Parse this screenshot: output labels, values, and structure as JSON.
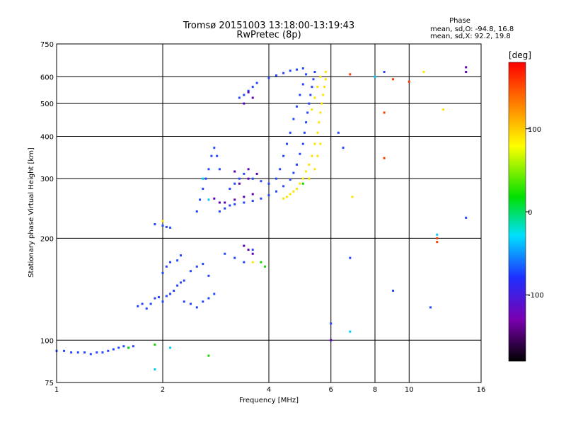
{
  "chart_data": {
    "type": "scatter",
    "title": "Tromsø 20151003 13:18:00-13:19:43",
    "subtitle": "RwPretec (8p)",
    "xlabel": "Frequency [MHz]",
    "ylabel": "Stationary phase Virtual Height [km]",
    "x_scale": "log",
    "y_scale": "log",
    "xlim": [
      1,
      16
    ],
    "ylim": [
      75,
      750
    ],
    "x_ticks": [
      1,
      2,
      4,
      6,
      8,
      10,
      16
    ],
    "y_ticks": [
      75,
      100,
      200,
      300,
      400,
      500,
      600,
      750
    ],
    "grid": true,
    "stats": {
      "heading": "Phase",
      "o_line": "mean, sd,O: -94.8, 16.8",
      "x_line": "mean, sd,X:  92.2, 19.8"
    },
    "colorbar": {
      "label": "[deg]",
      "range": [
        -180,
        180
      ],
      "ticks": [
        100,
        0,
        -100
      ]
    },
    "series": [
      {
        "name": "",
        "polarization": "O",
        "phase_deg": -95,
        "color": "#2545ff",
        "points": [
          [
            1.0,
            93
          ],
          [
            1.05,
            93
          ],
          [
            1.1,
            92
          ],
          [
            1.15,
            92
          ],
          [
            1.2,
            92
          ],
          [
            1.25,
            91
          ],
          [
            1.3,
            92
          ],
          [
            1.35,
            92
          ],
          [
            1.4,
            93
          ],
          [
            1.45,
            94
          ],
          [
            1.5,
            95
          ],
          [
            1.55,
            96
          ],
          [
            1.6,
            95
          ],
          [
            1.65,
            96
          ],
          [
            1.7,
            126
          ],
          [
            1.75,
            128
          ],
          [
            1.8,
            124
          ],
          [
            1.85,
            128
          ],
          [
            1.9,
            133
          ],
          [
            1.95,
            134
          ],
          [
            2.0,
            130
          ],
          [
            2.05,
            135
          ],
          [
            2.1,
            137
          ],
          [
            2.15,
            140
          ],
          [
            2.2,
            145
          ],
          [
            2.25,
            148
          ],
          [
            2.3,
            150
          ],
          [
            2.0,
            158
          ],
          [
            2.05,
            165
          ],
          [
            2.1,
            170
          ],
          [
            2.2,
            172
          ],
          [
            2.25,
            178
          ],
          [
            2.3,
            130
          ],
          [
            2.4,
            128
          ],
          [
            2.5,
            125
          ],
          [
            2.6,
            130
          ],
          [
            2.7,
            133
          ],
          [
            2.8,
            137
          ],
          [
            2.4,
            160
          ],
          [
            2.5,
            165
          ],
          [
            2.6,
            168
          ],
          [
            2.7,
            155
          ],
          [
            3.0,
            180
          ],
          [
            3.2,
            175
          ],
          [
            3.4,
            170
          ],
          [
            3.6,
            185
          ],
          [
            1.9,
            220
          ],
          [
            2.0,
            218
          ],
          [
            2.05,
            216
          ],
          [
            2.1,
            215
          ],
          [
            2.5,
            240
          ],
          [
            2.55,
            260
          ],
          [
            2.6,
            280
          ],
          [
            2.65,
            300
          ],
          [
            2.7,
            320
          ],
          [
            2.75,
            350
          ],
          [
            2.8,
            370
          ],
          [
            2.85,
            350
          ],
          [
            2.9,
            320
          ],
          [
            2.9,
            240
          ],
          [
            3.0,
            245
          ],
          [
            3.1,
            250
          ],
          [
            3.2,
            252
          ],
          [
            3.4,
            255
          ],
          [
            3.6,
            258
          ],
          [
            3.8,
            262
          ],
          [
            4.0,
            268
          ],
          [
            4.2,
            275
          ],
          [
            4.4,
            285
          ],
          [
            4.6,
            298
          ],
          [
            4.7,
            312
          ],
          [
            4.8,
            330
          ],
          [
            4.9,
            355
          ],
          [
            5.0,
            380
          ],
          [
            5.05,
            410
          ],
          [
            5.1,
            440
          ],
          [
            5.15,
            470
          ],
          [
            5.2,
            500
          ],
          [
            5.25,
            530
          ],
          [
            5.3,
            560
          ],
          [
            5.35,
            590
          ],
          [
            5.4,
            620
          ],
          [
            3.1,
            280
          ],
          [
            3.2,
            290
          ],
          [
            3.3,
            300
          ],
          [
            3.4,
            310
          ],
          [
            3.6,
            300
          ],
          [
            3.8,
            295
          ],
          [
            4.0,
            290
          ],
          [
            4.2,
            300
          ],
          [
            4.3,
            320
          ],
          [
            4.4,
            350
          ],
          [
            4.5,
            380
          ],
          [
            4.6,
            410
          ],
          [
            4.7,
            450
          ],
          [
            4.8,
            490
          ],
          [
            4.9,
            530
          ],
          [
            5.0,
            570
          ],
          [
            5.1,
            610
          ],
          [
            4.0,
            595
          ],
          [
            4.2,
            605
          ],
          [
            4.4,
            615
          ],
          [
            4.6,
            625
          ],
          [
            4.8,
            630
          ],
          [
            5.0,
            635
          ],
          [
            3.3,
            520
          ],
          [
            3.4,
            530
          ],
          [
            3.5,
            545
          ],
          [
            3.6,
            560
          ],
          [
            3.7,
            575
          ],
          [
            6.0,
            112
          ],
          [
            6.3,
            410
          ],
          [
            6.5,
            370
          ],
          [
            6.8,
            175
          ],
          [
            8.5,
            620
          ],
          [
            9.0,
            140
          ],
          [
            11.5,
            125
          ],
          [
            14.5,
            230
          ]
        ]
      },
      {
        "name": "",
        "polarization": "O-low",
        "phase_deg": -130,
        "color": "#5a00b5",
        "points": [
          [
            3.0,
            255
          ],
          [
            3.2,
            260
          ],
          [
            3.4,
            265
          ],
          [
            3.6,
            270
          ],
          [
            3.3,
            290
          ],
          [
            3.5,
            300
          ],
          [
            3.7,
            310
          ],
          [
            3.5,
            320
          ],
          [
            3.2,
            315
          ],
          [
            2.9,
            255
          ],
          [
            2.8,
            262
          ],
          [
            3.4,
            190
          ],
          [
            3.5,
            185
          ],
          [
            3.6,
            180
          ],
          [
            3.4,
            500
          ],
          [
            3.6,
            520
          ],
          [
            3.5,
            540
          ],
          [
            6.0,
            100
          ],
          [
            14.5,
            620
          ],
          [
            14.5,
            640
          ]
        ]
      },
      {
        "name": "",
        "polarization": "X",
        "phase_deg": 92,
        "color": "#ffe400",
        "points": [
          [
            4.5,
            265
          ],
          [
            4.6,
            270
          ],
          [
            4.7,
            275
          ],
          [
            4.8,
            280
          ],
          [
            4.9,
            290
          ],
          [
            5.0,
            300
          ],
          [
            5.1,
            315
          ],
          [
            5.2,
            330
          ],
          [
            5.3,
            350
          ],
          [
            5.4,
            380
          ],
          [
            5.5,
            410
          ],
          [
            5.55,
            440
          ],
          [
            5.6,
            470
          ],
          [
            5.65,
            500
          ],
          [
            5.7,
            530
          ],
          [
            5.75,
            560
          ],
          [
            5.8,
            590
          ],
          [
            5.8,
            620
          ],
          [
            4.4,
            262
          ],
          [
            5.2,
            300
          ],
          [
            5.4,
            320
          ],
          [
            5.5,
            350
          ],
          [
            5.6,
            380
          ],
          [
            5.3,
            480
          ],
          [
            5.4,
            520
          ],
          [
            5.5,
            560
          ],
          [
            5.6,
            600
          ],
          [
            2.0,
            225
          ],
          [
            3.6,
            170
          ],
          [
            6.9,
            265
          ],
          [
            11.0,
            620
          ],
          [
            12.5,
            480
          ]
        ]
      },
      {
        "name": "",
        "polarization": "misc",
        "phase_deg": 160,
        "color": "#ff3a00",
        "points": [
          [
            6.8,
            610
          ],
          [
            8.5,
            345
          ],
          [
            8.5,
            470
          ],
          [
            9.0,
            590
          ],
          [
            10.0,
            580
          ],
          [
            12.0,
            200
          ],
          [
            12.0,
            195
          ]
        ]
      },
      {
        "name": "",
        "polarization": "misc-green",
        "phase_deg": 20,
        "color": "#16d600",
        "points": [
          [
            1.6,
            95
          ],
          [
            1.9,
            97
          ],
          [
            2.7,
            90
          ],
          [
            3.8,
            170
          ],
          [
            3.9,
            165
          ],
          [
            5.0,
            290
          ]
        ]
      },
      {
        "name": "",
        "polarization": "misc-cyan",
        "phase_deg": -60,
        "color": "#00c8ff",
        "points": [
          [
            2.6,
            300
          ],
          [
            2.7,
            260
          ],
          [
            1.9,
            82
          ],
          [
            2.1,
            95
          ],
          [
            6.8,
            106
          ],
          [
            8.0,
            600
          ],
          [
            12.0,
            205
          ]
        ]
      }
    ]
  }
}
